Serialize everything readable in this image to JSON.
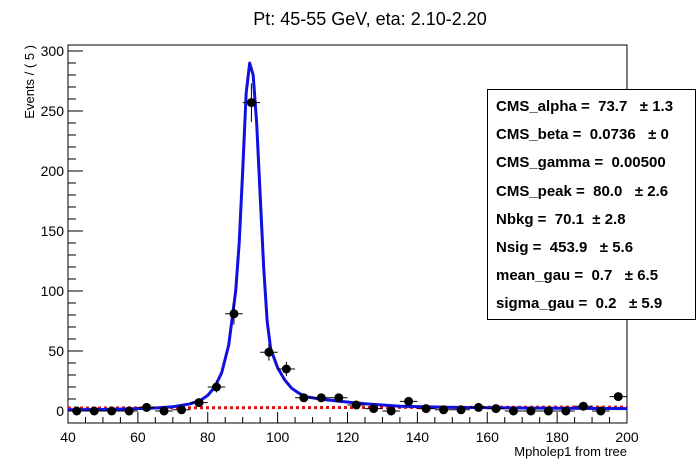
{
  "chart_data": {
    "type": "scatter",
    "title": "Pt: 45-55 GeV, eta: 2.10-2.20",
    "xlabel": "Mpholep1 from tree",
    "ylabel": "Events / ( 5 )",
    "xlim": [
      40,
      200
    ],
    "ylim": [
      -10,
      305
    ],
    "xticks": [
      40,
      60,
      80,
      100,
      120,
      140,
      160,
      180,
      200
    ],
    "yticks": [
      0,
      50,
      100,
      150,
      200,
      250,
      300
    ],
    "xtick_labels": [
      "40",
      "60",
      "80",
      "100",
      "120",
      "140",
      "160",
      "180",
      "200"
    ],
    "ytick_labels": [
      "0",
      "50",
      "100",
      "150",
      "200",
      "250",
      "300"
    ],
    "grid": false,
    "series": [
      {
        "kind": "points",
        "color": "#000000",
        "x": [
          42.5,
          47.5,
          52.5,
          57.5,
          62.5,
          67.5,
          72.5,
          77.5,
          82.5,
          87.5,
          92.5,
          97.5,
          102.5,
          107.5,
          112.5,
          117.5,
          122.5,
          127.5,
          132.5,
          137.5,
          142.5,
          147.5,
          152.5,
          157.5,
          162.5,
          167.5,
          172.5,
          177.5,
          182.5,
          187.5,
          192.5,
          197.5
        ],
        "y": [
          0,
          0,
          0,
          0,
          3,
          0,
          1,
          7,
          20,
          81,
          257,
          49,
          35,
          11,
          11,
          11,
          5,
          2,
          0,
          8,
          2,
          1,
          1,
          3,
          2,
          0,
          0,
          0,
          0,
          4,
          0,
          12
        ],
        "yerr": [
          1,
          1,
          1,
          1,
          1.8,
          1,
          1.3,
          2.7,
          4.5,
          9,
          16,
          7,
          5.9,
          3.3,
          3.3,
          3.3,
          2.2,
          1.5,
          1,
          2.8,
          1.5,
          1.3,
          1.3,
          1.8,
          1.5,
          1,
          1,
          1,
          1,
          2,
          1,
          3.5
        ]
      },
      {
        "kind": "curve",
        "color": "#1010e0",
        "x": [
          40,
          50,
          60,
          65,
          70,
          75,
          78,
          80,
          82,
          84,
          86,
          88,
          89,
          90,
          91,
          92,
          93,
          94,
          95,
          96,
          97,
          98,
          100,
          102,
          104,
          106,
          108,
          112,
          118,
          125,
          135,
          150,
          170,
          200
        ],
        "y": [
          1,
          1.3,
          2,
          2.5,
          3.5,
          6,
          9,
          13,
          20,
          32,
          55,
          100,
          140,
          200,
          265,
          290,
          280,
          240,
          180,
          120,
          75,
          52,
          36,
          26,
          19,
          15,
          12,
          10,
          8,
          6,
          4,
          3,
          2.5,
          2
        ]
      },
      {
        "kind": "background",
        "color": "#e01010",
        "x": [
          40,
          100,
          200
        ],
        "y": [
          2.5,
          2.8,
          3.3
        ]
      }
    ]
  },
  "stats": [
    {
      "label": "CMS_alpha =  73.7   ± 1.3"
    },
    {
      "label": "CMS_beta =  0.0736   ± 0"
    },
    {
      "label": "CMS_gamma =  0.00500"
    },
    {
      "label": "CMS_peak =  80.0   ± 2.6"
    },
    {
      "label": "Nbkg =  70.1  ± 2.8"
    },
    {
      "label": "Nsig =  453.9   ± 5.6"
    },
    {
      "label": "mean_gau =  0.7   ± 6.5"
    },
    {
      "label": "sigma_gau =  0.2   ± 5.9"
    }
  ]
}
